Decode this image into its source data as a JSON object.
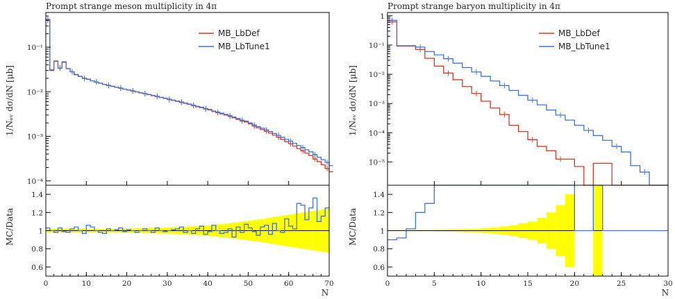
{
  "chart_data": [
    {
      "type": "line",
      "title": "Prompt strange meson multiplicity in 4π",
      "xlabel": "N",
      "ylabel_main": "1/Nₑᵥ dσ/dN [μb]",
      "ylabel_ratio": "MC/Data",
      "xlim": [
        0,
        70
      ],
      "xticks": [
        "0",
        "10",
        "20",
        "30",
        "40",
        "50",
        "60",
        "70"
      ],
      "ylim_main": [
        8e-05,
        0.6
      ],
      "yscale_main": "log",
      "yticks_main": [
        "10⁻⁴",
        "10⁻³",
        "10⁻²",
        "10⁻¹"
      ],
      "ylim_ratio": [
        0.5,
        1.5
      ],
      "yticks_ratio": [
        "0.6",
        "0.8",
        "1",
        "1.2",
        "1.4"
      ],
      "legend_position": "top-right",
      "series": [
        {
          "name": "MB_LbDef",
          "color": "#e0301e",
          "values": [
            0.4,
            0.03,
            0.048,
            0.034,
            0.046,
            0.033,
            0.028,
            0.024,
            0.022,
            0.02,
            0.019,
            0.0175,
            0.0165,
            0.0155,
            0.0146,
            0.0138,
            0.0132,
            0.0126,
            0.012,
            0.0114,
            0.0109,
            0.0104,
            0.0099,
            0.0094,
            0.009,
            0.0086,
            0.0082,
            0.0078,
            0.0074,
            0.0071,
            0.0067,
            0.0064,
            0.0061,
            0.0058,
            0.0055,
            0.0052,
            0.0049,
            0.0046,
            0.0044,
            0.0041,
            0.0039,
            0.0036,
            0.0034,
            0.0032,
            0.003,
            0.0028,
            0.0026,
            0.0024,
            0.0022,
            0.0021,
            0.0019,
            0.0017,
            0.00155,
            0.00142,
            0.0013,
            0.00118,
            0.00106,
            0.00095,
            0.00085,
            0.00076,
            0.00068,
            0.0006,
            0.00053,
            0.00047,
            0.00042,
            0.00037,
            0.00031,
            0.00027,
            0.00023,
            0.00019,
            0.00016
          ]
        },
        {
          "name": "MB_LbTune1",
          "color": "#3b6fe0",
          "values": [
            0.42,
            0.031,
            0.049,
            0.034,
            0.047,
            0.033,
            0.028,
            0.0245,
            0.0222,
            0.0202,
            0.0192,
            0.0176,
            0.0166,
            0.0156,
            0.0147,
            0.0139,
            0.0133,
            0.0127,
            0.0121,
            0.0115,
            0.011,
            0.0105,
            0.01,
            0.0095,
            0.0091,
            0.0087,
            0.0083,
            0.0079,
            0.0075,
            0.0072,
            0.0068,
            0.0065,
            0.0062,
            0.0059,
            0.0056,
            0.0053,
            0.005,
            0.0047,
            0.0045,
            0.0042,
            0.004,
            0.0037,
            0.0035,
            0.0033,
            0.0031,
            0.0029,
            0.0027,
            0.0025,
            0.0023,
            0.0022,
            0.002,
            0.0018,
            0.00165,
            0.00152,
            0.0014,
            0.00128,
            0.00116,
            0.00105,
            0.00095,
            0.00086,
            0.00078,
            0.0007,
            0.00062,
            0.00056,
            0.0005,
            0.00045,
            0.00039,
            0.00034,
            0.0003,
            0.00026,
            0.00022
          ]
        }
      ],
      "ratio": {
        "band_halfwidth": [
          0.02,
          0.02,
          0.02,
          0.02,
          0.02,
          0.02,
          0.02,
          0.02,
          0.02,
          0.02,
          0.02,
          0.02,
          0.02,
          0.02,
          0.02,
          0.02,
          0.02,
          0.021,
          0.022,
          0.023,
          0.024,
          0.025,
          0.026,
          0.027,
          0.028,
          0.029,
          0.03,
          0.031,
          0.032,
          0.033,
          0.035,
          0.037,
          0.039,
          0.041,
          0.043,
          0.045,
          0.047,
          0.05,
          0.053,
          0.056,
          0.06,
          0.064,
          0.068,
          0.072,
          0.077,
          0.082,
          0.087,
          0.092,
          0.098,
          0.104,
          0.11,
          0.116,
          0.122,
          0.129,
          0.136,
          0.143,
          0.15,
          0.157,
          0.164,
          0.171,
          0.178,
          0.185,
          0.192,
          0.199,
          0.206,
          0.213,
          0.22,
          0.227,
          0.234,
          0.24
        ],
        "mc": [
          1.03,
          1.0,
          0.98,
          1.03,
          0.99,
          0.98,
          1.02,
          1.04,
          1.0,
          0.97,
          1.06,
          1.04,
          1.0,
          0.98,
          0.97,
          1.02,
          1.0,
          1.01,
          1.03,
          0.99,
          1.01,
          1.0,
          0.98,
          1.0,
          1.02,
          1.0,
          0.98,
          1.03,
          1.0,
          0.99,
          1.0,
          1.01,
          1.02,
          1.04,
          0.98,
          1.0,
          0.97,
          1.02,
          1.05,
          0.96,
          0.99,
          1.06,
          1.0,
          0.97,
          0.98,
          1.02,
          0.93,
          1.04,
          0.98,
          1.07,
          1.03,
          0.99,
          0.95,
          1.04,
          1.06,
          0.96,
          1.08,
          1.0,
          0.98,
          1.13,
          1.05,
          1.02,
          1.3,
          1.28,
          1.12,
          1.25,
          1.36,
          1.1,
          1.16,
          1.25
        ]
      }
    },
    {
      "type": "line",
      "title": "Prompt strange baryon multiplicity in 4π",
      "xlabel": "N",
      "ylabel_main": "1/Nₑᵥ dσ/dN [μb]",
      "ylabel_ratio": "MC/Data",
      "xlim": [
        0,
        30
      ],
      "xticks": [
        "0",
        "5",
        "10",
        "15",
        "20",
        "25",
        "30"
      ],
      "ylim_main": [
        1.6e-06,
        1.3
      ],
      "yscale_main": "log",
      "yticks_main": [
        "10⁻⁵",
        "10⁻⁴",
        "10⁻³",
        "10⁻²",
        "10⁻¹",
        "1"
      ],
      "ylim_ratio": [
        0.5,
        1.5
      ],
      "yticks_ratio": [
        "0.6",
        "0.8",
        "1",
        "1.2",
        "1.4"
      ],
      "legend_position": "top-right",
      "series": [
        {
          "name": "MB_LbDef",
          "color": "#e0301e",
          "values": [
            0.62,
            0.092,
            0.092,
            0.07,
            0.035,
            0.019,
            0.011,
            0.0065,
            0.0038,
            0.0022,
            0.0012,
            0.0007,
            0.00042,
            0.00018,
            0.00011,
            5.8e-05,
            3.4e-05,
            2.4e-05,
            1.25e-05,
            1.25e-05,
            7e-06,
            7e-07,
            9e-06,
            9e-06,
            7e-07,
            7e-07,
            7e-07,
            7e-07,
            7e-07,
            7e-07
          ]
        },
        {
          "name": "MB_LbTune1",
          "color": "#3b6fe0",
          "values": [
            0.7,
            0.095,
            0.095,
            0.085,
            0.06,
            0.046,
            0.034,
            0.024,
            0.017,
            0.012,
            0.0085,
            0.0059,
            0.0041,
            0.0028,
            0.0019,
            0.0013,
            0.0009,
            0.0006,
            0.0004,
            0.00027,
            0.00018,
            0.00012,
            8e-05,
            5.5e-05,
            3.4e-05,
            2.2e-05,
            7.5e-06,
            4.5e-06,
            7e-07,
            7e-07
          ]
        }
      ],
      "ratio": {
        "band_halfwidth": [
          0.005,
          0.005,
          0.005,
          0.006,
          0.007,
          0.009,
          0.011,
          0.014,
          0.018,
          0.022,
          0.028,
          0.036,
          0.046,
          0.06,
          0.08,
          0.1,
          0.14,
          0.2,
          0.28,
          0.4,
          0.0,
          0.0,
          0.55,
          0.0,
          0.0,
          0.0,
          0.0,
          0.0,
          0.0,
          0.0
        ],
        "mc": [
          0.9,
          0.92,
          1.02,
          1.2,
          1.3,
          1.8,
          2.4,
          3,
          3,
          3,
          3,
          3,
          3,
          3,
          3,
          3,
          3,
          3,
          3,
          3,
          1.0,
          1.0,
          3,
          1.0,
          1.0,
          1.0,
          1.0,
          1.0,
          1.0,
          1.0
        ]
      }
    }
  ]
}
